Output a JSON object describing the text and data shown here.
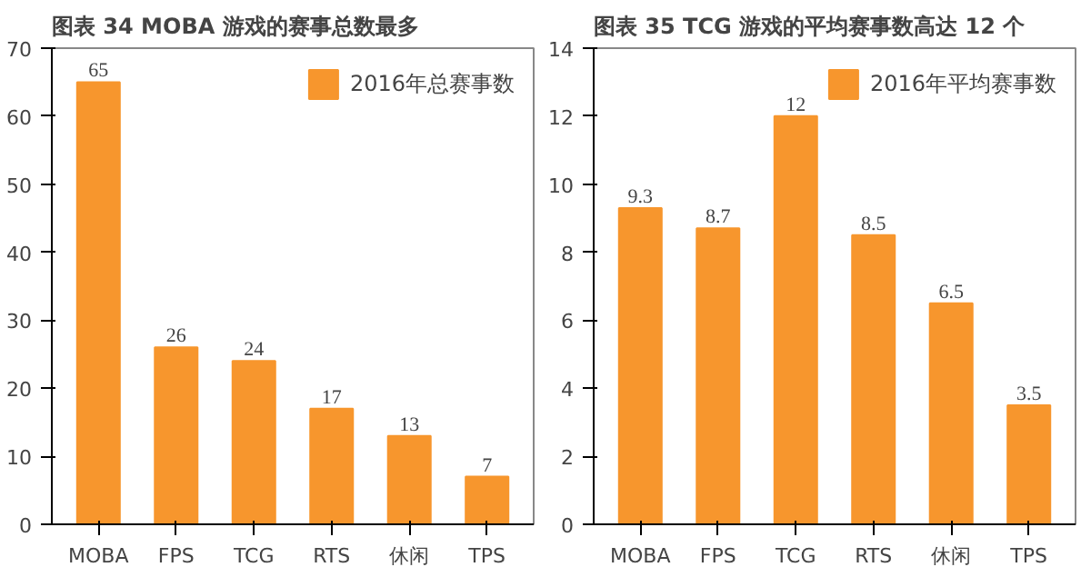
{
  "chart_data": [
    {
      "type": "bar",
      "title": "图表 34 MOBA 游戏的赛事总数最多",
      "categories": [
        "MOBA",
        "FPS",
        "TCG",
        "RTS",
        "休闲",
        "TPS"
      ],
      "series": [
        {
          "name": "2016年总赛事数",
          "color": "#f7962d",
          "values": [
            65,
            26,
            24,
            17,
            13,
            7
          ]
        }
      ],
      "ylim": [
        0,
        70
      ],
      "yticks": [
        0,
        10,
        20,
        30,
        40,
        50,
        60,
        70
      ],
      "data_labels": true,
      "legend": "top right",
      "grid": false
    },
    {
      "type": "bar",
      "title": "图表 35 TCG 游戏的平均赛事数高达 12 个",
      "categories": [
        "MOBA",
        "FPS",
        "TCG",
        "RTS",
        "休闲",
        "TPS"
      ],
      "series": [
        {
          "name": "2016年平均赛事数",
          "color": "#f7962d",
          "values": [
            9.3,
            8.7,
            12,
            8.5,
            6.5,
            3.5
          ]
        }
      ],
      "ylim": [
        0,
        14
      ],
      "yticks": [
        0,
        2,
        4,
        6,
        8,
        10,
        12,
        14
      ],
      "data_labels": true,
      "legend": "top right",
      "grid": false
    }
  ]
}
